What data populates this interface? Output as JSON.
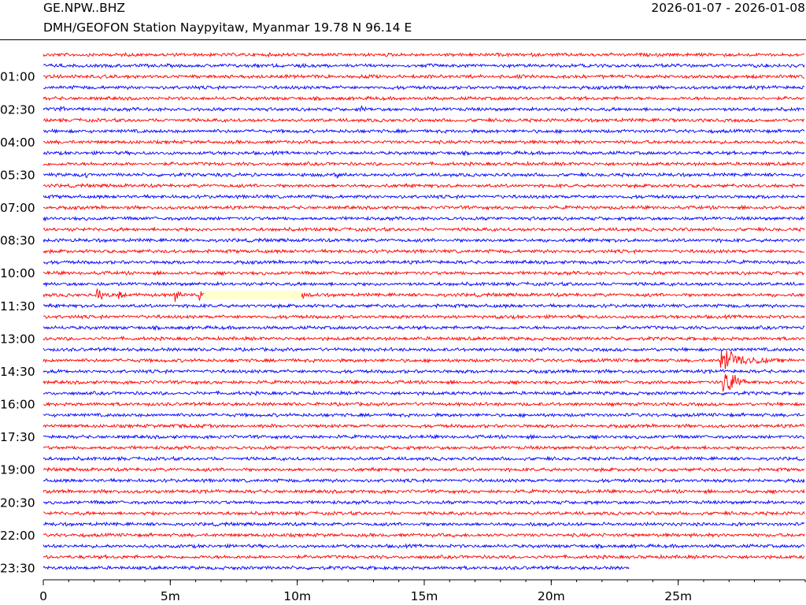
{
  "header": {
    "station_code": "GE.NPW..BHZ",
    "station_description": "DMH/GEOFON Station Naypyitaw, Myanmar  19.78 N 96.14 E",
    "date_range": "2026-01-07 - 2026-01-08"
  },
  "colors": {
    "trace_a": "#ff0000",
    "trace_b": "#0000ff",
    "gap_fill": "#ffffcc"
  },
  "chart_data": {
    "type": "line",
    "plot_kind": "helicorder",
    "title": "",
    "xlabel": "",
    "ylabel": "",
    "minutes_per_line": 30,
    "num_lines": 48,
    "last_line_end_minute": 23.1,
    "xlim": [
      0,
      30
    ],
    "x_ticks": [
      {
        "value": 0,
        "label": "0"
      },
      {
        "value": 5,
        "label": "5m"
      },
      {
        "value": 10,
        "label": "10m"
      },
      {
        "value": 15,
        "label": "15m"
      },
      {
        "value": 20,
        "label": "20m"
      },
      {
        "value": 25,
        "label": "25m"
      }
    ],
    "x_minor_tick_step": 1,
    "y_tick_labels": [
      {
        "line": 2,
        "label": "01:00"
      },
      {
        "line": 5,
        "label": "02:30"
      },
      {
        "line": 8,
        "label": "04:00"
      },
      {
        "line": 11,
        "label": "05:30"
      },
      {
        "line": 14,
        "label": "07:00"
      },
      {
        "line": 17,
        "label": "08:30"
      },
      {
        "line": 20,
        "label": "10:00"
      },
      {
        "line": 23,
        "label": "11:30"
      },
      {
        "line": 26,
        "label": "13:00"
      },
      {
        "line": 29,
        "label": "14:30"
      },
      {
        "line": 32,
        "label": "16:00"
      },
      {
        "line": 35,
        "label": "17:30"
      },
      {
        "line": 38,
        "label": "19:00"
      },
      {
        "line": 41,
        "label": "20:30"
      },
      {
        "line": 44,
        "label": "22:00"
      },
      {
        "line": 47,
        "label": "23:30"
      }
    ],
    "data_gaps": [
      {
        "line": 22,
        "start_minute": 6.3,
        "end_minute": 10.2
      }
    ],
    "events": [
      {
        "line": 1,
        "minute": 8.2,
        "amplitude": 0.6,
        "duration": 0.7
      },
      {
        "line": 4,
        "minute": 4.1,
        "amplitude": 0.5,
        "duration": 0.6
      },
      {
        "line": 5,
        "minute": 0.7,
        "amplitude": 1.6,
        "duration": 0.8
      },
      {
        "line": 5,
        "minute": 1.1,
        "amplitude": 0.7,
        "duration": 0.4
      },
      {
        "line": 5,
        "minute": 12.5,
        "amplitude": 1.3,
        "duration": 0.5
      },
      {
        "line": 6,
        "minute": 24.7,
        "amplitude": 0.9,
        "duration": 0.4
      },
      {
        "line": 11,
        "minute": 1.7,
        "amplitude": 1.2,
        "duration": 1.2
      },
      {
        "line": 11,
        "minute": 6.7,
        "amplitude": 0.4,
        "duration": 4.5
      },
      {
        "line": 11,
        "minute": 11.6,
        "amplitude": 1.8,
        "duration": 0.4
      },
      {
        "line": 22,
        "minute": 2.1,
        "amplitude": 2.5,
        "duration": 1.0
      },
      {
        "line": 22,
        "minute": 3.0,
        "amplitude": 2.8,
        "duration": 0.6
      },
      {
        "line": 22,
        "minute": 5.2,
        "amplitude": 2.5,
        "duration": 0.8
      },
      {
        "line": 22,
        "minute": 6.2,
        "amplitude": 3.0,
        "duration": 0.6
      },
      {
        "line": 22,
        "minute": 10.1,
        "amplitude": 2.3,
        "duration": 0.9
      },
      {
        "line": 24,
        "minute": 14.4,
        "amplitude": 0.2,
        "duration": 4.0
      },
      {
        "line": 28,
        "minute": 26.7,
        "amplitude": 4.5,
        "duration": 3.3
      },
      {
        "line": 29,
        "minute": 0.0,
        "amplitude": 0.35,
        "duration": 1.5
      },
      {
        "line": 30,
        "minute": 26.8,
        "amplitude": 5.5,
        "duration": 1.6
      },
      {
        "line": 34,
        "minute": 5.0,
        "amplitude": 0.8,
        "duration": 6.0
      },
      {
        "line": 43,
        "minute": 19.3,
        "amplitude": 0.8,
        "duration": 8.5
      }
    ]
  }
}
